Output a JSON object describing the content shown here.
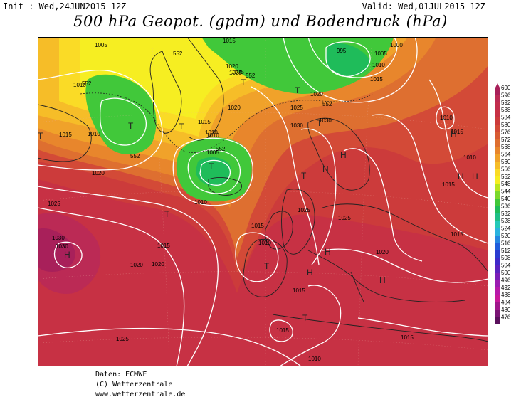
{
  "header": {
    "init": "Init : Wed,24JUN2015 12Z",
    "valid": "Valid: Wed,01JUL2015 12Z",
    "title": "500 hPa Geopot. (gpdm) und Bodendruck (hPa)"
  },
  "legend": {
    "levels": [
      "600",
      "596",
      "592",
      "588",
      "584",
      "580",
      "576",
      "572",
      "568",
      "564",
      "560",
      "556",
      "552",
      "548",
      "544",
      "540",
      "536",
      "532",
      "528",
      "524",
      "520",
      "516",
      "512",
      "508",
      "504",
      "500",
      "496",
      "492",
      "488",
      "484",
      "480",
      "476"
    ],
    "colors": [
      "#a8205a",
      "#bb2a55",
      "#c22d4d",
      "#c73144",
      "#cc3b3b",
      "#d34a37",
      "#d85b33",
      "#de6f30",
      "#e8862c",
      "#f0a22a",
      "#f6bd28",
      "#fadb26",
      "#f6ee22",
      "#b9e61f",
      "#7bd82c",
      "#41c83a",
      "#1fbc5a",
      "#1fbf86",
      "#25c9b8",
      "#2bb3df",
      "#2587e1",
      "#1f5ddb",
      "#2a3bd0",
      "#3f29c9",
      "#5a22bf",
      "#7a1db7",
      "#9b1cb1",
      "#b719a9",
      "#c8189a",
      "#a0168a",
      "#7a1474",
      "#5a105c"
    ]
  },
  "map_labels": {
    "pressures": [
      "1005",
      "1010",
      "1015",
      "1020",
      "1025",
      "1030",
      "995",
      "1000",
      "1005",
      "1010",
      "1015",
      "1020",
      "1025",
      "1030",
      "1010",
      "1015",
      "1020",
      "1025",
      "1010",
      "1015",
      "1020",
      "1025",
      "1030",
      "1005",
      "1010",
      "1015",
      "1010",
      "1015",
      "1020",
      "1025",
      "1010",
      "1015",
      "1010",
      "1015",
      "1020",
      "1025",
      "1015",
      "1010",
      "1015",
      "1025",
      "1010",
      "1015",
      "1020",
      "1030",
      "1015"
    ],
    "geopot": [
      "552",
      "552",
      "552",
      "552",
      "552",
      "552"
    ],
    "highs": [
      "H",
      "H",
      "H",
      "H",
      "H",
      "H",
      "H",
      "H",
      "H"
    ],
    "lows": [
      "T",
      "T",
      "T",
      "T",
      "T",
      "T",
      "T",
      "T",
      "T",
      "T",
      "T"
    ]
  },
  "footer": {
    "source": "Daten: ECMWF",
    "copyright": "(C) Wetterzentrale",
    "url": "www.wetterzentrale.de"
  }
}
